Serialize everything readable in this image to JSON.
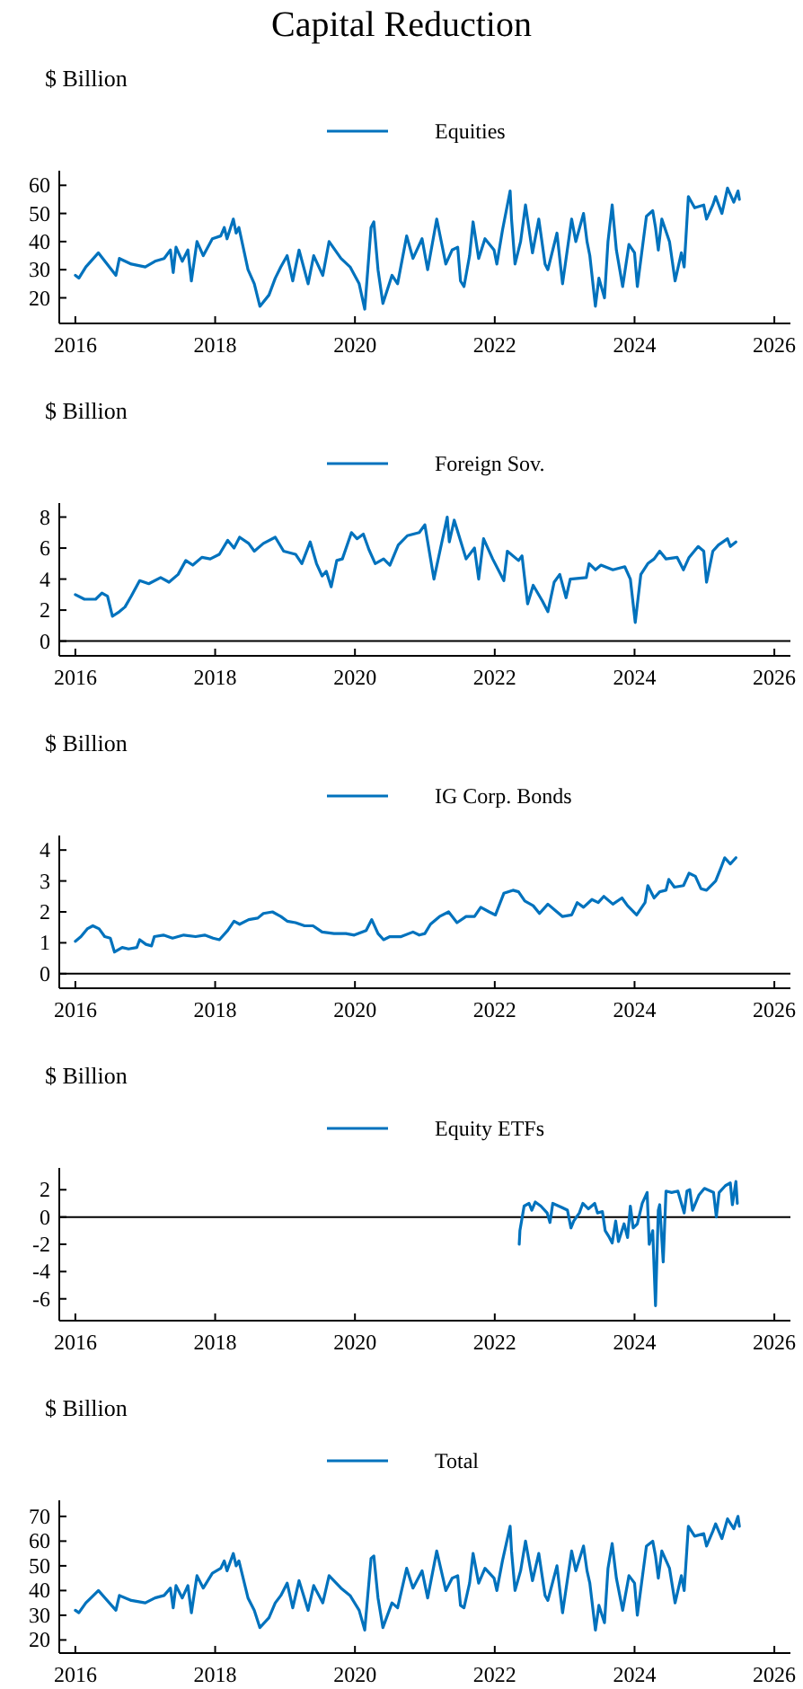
{
  "chart_data": [
    {
      "type": "line",
      "title": "Capital Reduction",
      "ylabel": "$ Billion",
      "legend": "top",
      "xlim": [
        2015.77,
        2026.23
      ],
      "xticks": [
        2016,
        2018,
        2020,
        2022,
        2024,
        2026
      ],
      "ylim": [
        10.9,
        65.2
      ],
      "yticks": [
        20,
        30,
        40,
        50,
        60
      ],
      "series": [
        {
          "name": "Equities",
          "color": "#0072bd",
          "x": [
            2016,
            2016.05,
            2016.15,
            2016.33,
            2016.58,
            2016.63,
            2016.8,
            2017,
            2017.14,
            2017.27,
            2017.36,
            2017.4,
            2017.44,
            2017.53,
            2017.61,
            2017.66,
            2017.74,
            2017.83,
            2017.96,
            2018.08,
            2018.13,
            2018.17,
            2018.26,
            2018.3,
            2018.34,
            2018.47,
            2018.56,
            2018.64,
            2018.77,
            2018.86,
            2018.94,
            2019.03,
            2019.11,
            2019.2,
            2019.33,
            2019.41,
            2019.54,
            2019.63,
            2019.8,
            2019.93,
            2020.06,
            2020.14,
            2020.23,
            2020.27,
            2020.33,
            2020.4,
            2020.53,
            2020.61,
            2020.74,
            2020.83,
            2020.96,
            2021.04,
            2021.17,
            2021.3,
            2021.39,
            2021.47,
            2021.51,
            2021.56,
            2021.64,
            2021.69,
            2021.77,
            2021.86,
            2021.99,
            2022.03,
            2022.11,
            2022.22,
            2022.24,
            2022.29,
            2022.37,
            2022.44,
            2022.54,
            2022.63,
            2022.72,
            2022.76,
            2022.89,
            2022.97,
            2023.1,
            2023.16,
            2023.27,
            2023.32,
            2023.36,
            2023.44,
            2023.49,
            2023.57,
            2023.62,
            2023.68,
            2023.74,
            2023.83,
            2023.92,
            2024,
            2024.04,
            2024.17,
            2024.26,
            2024.3,
            2024.34,
            2024.39,
            2024.5,
            2024.58,
            2024.67,
            2024.71,
            2024.77,
            2024.86,
            2024.99,
            2025.03,
            2025.12,
            2025.16,
            2025.25,
            2025.33,
            2025.42,
            2025.48,
            2025.5
          ],
          "values": [
            28,
            27,
            31,
            36,
            28,
            34,
            32,
            31,
            33,
            34,
            37,
            29,
            38,
            33,
            37,
            26,
            40,
            35,
            41,
            42,
            45,
            41,
            48,
            43,
            45,
            30,
            25,
            17,
            21,
            27,
            31,
            35,
            26,
            37,
            25,
            35,
            28,
            40,
            34,
            31,
            25,
            16,
            45,
            47,
            30,
            18,
            28,
            25,
            42,
            34,
            41,
            30,
            48,
            32,
            37,
            38,
            26,
            24,
            35,
            47,
            34,
            41,
            37,
            32,
            44,
            58,
            48,
            32,
            40,
            53,
            36,
            48,
            32,
            30,
            43,
            25,
            48,
            40,
            50,
            40,
            35,
            17,
            27,
            20,
            40,
            53,
            37,
            24,
            39,
            36,
            24,
            49,
            51,
            45,
            37,
            48,
            40,
            26,
            36,
            31,
            56,
            52,
            53,
            48,
            53,
            56,
            50,
            59,
            54,
            58,
            55
          ]
        }
      ]
    },
    {
      "type": "line",
      "ylabel": "$ Billion",
      "legend": "top",
      "xlim": [
        2015.77,
        2026.23
      ],
      "xticks": [
        2016,
        2018,
        2020,
        2022,
        2024,
        2026
      ],
      "ylim": [
        -0.95,
        8.9
      ],
      "yticks": [
        0,
        2,
        4,
        6,
        8
      ],
      "ref_lines": [
        {
          "axis": "y",
          "value": 0,
          "color": "#000000"
        }
      ],
      "series": [
        {
          "name": "Foreign Sov.",
          "color": "#0072bd",
          "x": [
            2016,
            2016.13,
            2016.29,
            2016.38,
            2016.46,
            2016.53,
            2016.63,
            2016.71,
            2016.8,
            2016.92,
            2017.05,
            2017.22,
            2017.34,
            2017.47,
            2017.58,
            2017.68,
            2017.81,
            2017.93,
            2018.06,
            2018.18,
            2018.27,
            2018.35,
            2018.48,
            2018.56,
            2018.69,
            2018.86,
            2018.98,
            2019.15,
            2019.24,
            2019.36,
            2019.45,
            2019.53,
            2019.59,
            2019.66,
            2019.74,
            2019.82,
            2019.95,
            2020.03,
            2020.12,
            2020.2,
            2020.29,
            2020.41,
            2020.5,
            2020.62,
            2020.75,
            2020.92,
            2021,
            2021.13,
            2021.32,
            2021.35,
            2021.42,
            2021.59,
            2021.71,
            2021.77,
            2021.84,
            2021.97,
            2022.13,
            2022.18,
            2022.34,
            2022.39,
            2022.47,
            2022.55,
            2022.68,
            2022.76,
            2022.85,
            2022.93,
            2023.02,
            2023.08,
            2023.31,
            2023.35,
            2023.44,
            2023.52,
            2023.69,
            2023.86,
            2023.94,
            2024.01,
            2024.09,
            2024.19,
            2024.28,
            2024.36,
            2024.45,
            2024.61,
            2024.7,
            2024.78,
            2024.91,
            2024.99,
            2025.03,
            2025.12,
            2025.2,
            2025.33,
            2025.37,
            2025.45
          ],
          "values": [
            3.0,
            2.7,
            2.7,
            3.1,
            2.9,
            1.6,
            1.9,
            2.2,
            2.9,
            3.9,
            3.7,
            4.1,
            3.8,
            4.3,
            5.2,
            4.9,
            5.4,
            5.3,
            5.6,
            6.5,
            6.0,
            6.7,
            6.3,
            5.8,
            6.3,
            6.7,
            5.8,
            5.6,
            5.0,
            6.4,
            5.0,
            4.2,
            4.5,
            3.5,
            5.2,
            5.3,
            7.0,
            6.6,
            6.9,
            5.9,
            5.0,
            5.3,
            4.9,
            6.2,
            6.8,
            7.0,
            7.5,
            4.0,
            8.0,
            6.4,
            7.8,
            5.3,
            6.0,
            4.0,
            6.6,
            5.3,
            3.9,
            5.8,
            5.2,
            5.5,
            2.4,
            3.6,
            2.6,
            1.9,
            3.8,
            4.3,
            2.8,
            4.0,
            4.1,
            5.0,
            4.6,
            4.9,
            4.6,
            4.8,
            4.0,
            1.2,
            4.3,
            5.0,
            5.3,
            5.8,
            5.3,
            5.4,
            4.6,
            5.4,
            6.1,
            5.8,
            3.8,
            5.8,
            6.2,
            6.6,
            6.1,
            6.4
          ]
        }
      ]
    },
    {
      "type": "line",
      "ylabel": "$ Billion",
      "legend": "top",
      "xlim": [
        2015.77,
        2026.23
      ],
      "xticks": [
        2016,
        2018,
        2020,
        2022,
        2024,
        2026
      ],
      "ylim": [
        -0.47,
        4.47
      ],
      "yticks": [
        0,
        1,
        2,
        3,
        4
      ],
      "ref_lines": [
        {
          "axis": "y",
          "value": 0,
          "color": "#000000"
        }
      ],
      "series": [
        {
          "name": "IG Corp. Bonds",
          "color": "#0072bd",
          "x": [
            2016,
            2016.08,
            2016.17,
            2016.25,
            2016.34,
            2016.42,
            2016.5,
            2016.56,
            2016.67,
            2016.76,
            2016.88,
            2016.92,
            2017.01,
            2017.09,
            2017.13,
            2017.26,
            2017.39,
            2017.55,
            2017.72,
            2017.85,
            2017.97,
            2018.06,
            2018.18,
            2018.27,
            2018.35,
            2018.48,
            2018.61,
            2018.69,
            2018.82,
            2018.94,
            2019.03,
            2019.15,
            2019.28,
            2019.4,
            2019.53,
            2019.7,
            2019.87,
            2019.99,
            2020.16,
            2020.24,
            2020.33,
            2020.41,
            2020.5,
            2020.66,
            2020.83,
            2020.92,
            2021,
            2021.08,
            2021.21,
            2021.34,
            2021.46,
            2021.59,
            2021.71,
            2021.8,
            2021.92,
            2022.01,
            2022.13,
            2022.26,
            2022.34,
            2022.43,
            2022.55,
            2022.64,
            2022.76,
            2022.89,
            2022.97,
            2023.1,
            2023.18,
            2023.27,
            2023.39,
            2023.48,
            2023.56,
            2023.69,
            2023.82,
            2023.9,
            2024.03,
            2024.15,
            2024.19,
            2024.28,
            2024.36,
            2024.45,
            2024.49,
            2024.57,
            2024.7,
            2024.78,
            2024.87,
            2024.95,
            2025.03,
            2025.16,
            2025.24,
            2025.29,
            2025.37,
            2025.45
          ],
          "values": [
            1.05,
            1.2,
            1.45,
            1.55,
            1.45,
            1.2,
            1.15,
            0.7,
            0.85,
            0.8,
            0.85,
            1.1,
            0.95,
            0.9,
            1.2,
            1.25,
            1.15,
            1.25,
            1.2,
            1.25,
            1.15,
            1.1,
            1.4,
            1.7,
            1.6,
            1.75,
            1.8,
            1.95,
            2.0,
            1.85,
            1.7,
            1.65,
            1.55,
            1.55,
            1.35,
            1.3,
            1.3,
            1.25,
            1.4,
            1.75,
            1.3,
            1.1,
            1.2,
            1.2,
            1.35,
            1.25,
            1.3,
            1.6,
            1.85,
            2.0,
            1.65,
            1.85,
            1.85,
            2.15,
            2.0,
            1.9,
            2.6,
            2.7,
            2.65,
            2.35,
            2.2,
            1.95,
            2.25,
            2.0,
            1.85,
            1.9,
            2.3,
            2.15,
            2.4,
            2.3,
            2.5,
            2.25,
            2.45,
            2.2,
            1.9,
            2.3,
            2.85,
            2.45,
            2.65,
            2.7,
            3.05,
            2.8,
            2.85,
            3.25,
            3.15,
            2.75,
            2.7,
            3.0,
            3.45,
            3.75,
            3.55,
            3.75
          ]
        }
      ]
    },
    {
      "type": "line",
      "ylabel": "$ Billion",
      "legend": "top",
      "xlim": [
        2015.77,
        2026.23
      ],
      "xticks": [
        2016,
        2018,
        2020,
        2022,
        2024,
        2026
      ],
      "ylim": [
        -7.6,
        3.6
      ],
      "yticks": [
        -6,
        -4,
        -2,
        0,
        2
      ],
      "ref_lines": [
        {
          "axis": "y",
          "value": 0,
          "color": "#000000"
        }
      ],
      "series": [
        {
          "name": "Equity ETFs",
          "color": "#0072bd",
          "x": [
            2022.35,
            2022.36,
            2022.42,
            2022.49,
            2022.53,
            2022.58,
            2022.66,
            2022.75,
            2022.79,
            2022.83,
            2022.96,
            2023.04,
            2023.09,
            2023.13,
            2023.21,
            2023.26,
            2023.34,
            2023.43,
            2023.47,
            2023.54,
            2023.58,
            2023.64,
            2023.68,
            2023.73,
            2023.77,
            2023.85,
            2023.9,
            2023.94,
            2023.98,
            2024.04,
            2024.11,
            2024.18,
            2024.21,
            2024.26,
            2024.3,
            2024.34,
            2024.36,
            2024.41,
            2024.45,
            2024.53,
            2024.62,
            2024.71,
            2024.75,
            2024.79,
            2024.83,
            2024.92,
            2025,
            2025.13,
            2025.17,
            2025.21,
            2025.3,
            2025.37,
            2025.4,
            2025.45,
            2025.47
          ],
          "values": [
            -2.0,
            -1.0,
            0.8,
            1.0,
            0.5,
            1.1,
            0.8,
            0.3,
            -0.4,
            1.0,
            0.7,
            0.5,
            -0.8,
            -0.3,
            0.3,
            1.0,
            0.6,
            1.0,
            0.3,
            0.4,
            -1.0,
            -1.5,
            -1.9,
            -0.3,
            -1.8,
            -0.5,
            -1.5,
            0.8,
            -0.8,
            -0.5,
            1.0,
            1.8,
            -2.0,
            -1.0,
            -6.5,
            0.5,
            0.9,
            -3.3,
            1.9,
            1.8,
            1.9,
            0.3,
            1.9,
            2.0,
            0.5,
            1.6,
            2.1,
            1.8,
            0.0,
            1.8,
            2.3,
            2.5,
            0.9,
            2.6,
            1.0
          ]
        }
      ]
    },
    {
      "type": "line",
      "ylabel": "$ Billion",
      "legend": "top",
      "xlim": [
        2015.77,
        2026.23
      ],
      "xticks": [
        2016,
        2018,
        2020,
        2022,
        2024,
        2026
      ],
      "ylim": [
        14.7,
        76.5
      ],
      "yticks": [
        20,
        30,
        40,
        50,
        60,
        70
      ],
      "series": [
        {
          "name": "Total",
          "color": "#0072bd",
          "x": [
            2016,
            2016.05,
            2016.15,
            2016.33,
            2016.58,
            2016.63,
            2016.8,
            2017,
            2017.14,
            2017.27,
            2017.36,
            2017.4,
            2017.44,
            2017.53,
            2017.61,
            2017.66,
            2017.74,
            2017.83,
            2017.96,
            2018.08,
            2018.13,
            2018.17,
            2018.26,
            2018.3,
            2018.34,
            2018.47,
            2018.56,
            2018.64,
            2018.77,
            2018.86,
            2018.94,
            2019.03,
            2019.11,
            2019.2,
            2019.33,
            2019.41,
            2019.54,
            2019.63,
            2019.8,
            2019.93,
            2020.06,
            2020.14,
            2020.23,
            2020.27,
            2020.33,
            2020.4,
            2020.53,
            2020.61,
            2020.74,
            2020.83,
            2020.96,
            2021.04,
            2021.17,
            2021.3,
            2021.39,
            2021.47,
            2021.51,
            2021.56,
            2021.64,
            2021.69,
            2021.77,
            2021.86,
            2021.99,
            2022.03,
            2022.11,
            2022.22,
            2022.24,
            2022.29,
            2022.37,
            2022.44,
            2022.54,
            2022.63,
            2022.72,
            2022.76,
            2022.89,
            2022.97,
            2023.1,
            2023.16,
            2023.27,
            2023.32,
            2023.36,
            2023.44,
            2023.49,
            2023.57,
            2023.62,
            2023.68,
            2023.74,
            2023.83,
            2023.92,
            2024,
            2024.04,
            2024.17,
            2024.26,
            2024.3,
            2024.34,
            2024.39,
            2024.5,
            2024.58,
            2024.67,
            2024.71,
            2024.77,
            2024.86,
            2024.99,
            2025.03,
            2025.12,
            2025.16,
            2025.25,
            2025.33,
            2025.42,
            2025.48,
            2025.5
          ],
          "values": [
            32,
            31,
            35,
            40,
            32,
            38,
            36,
            35,
            37,
            38,
            41,
            33,
            42,
            37,
            42,
            31,
            46,
            41,
            47,
            49,
            52,
            48,
            55,
            50,
            52,
            37,
            32,
            25,
            29,
            35,
            38,
            43,
            33,
            44,
            32,
            42,
            35,
            46,
            41,
            38,
            32,
            24,
            53,
            54,
            37,
            25,
            35,
            33,
            49,
            41,
            48,
            37,
            56,
            40,
            45,
            46,
            34,
            33,
            43,
            55,
            43,
            49,
            45,
            40,
            52,
            66,
            56,
            40,
            48,
            60,
            44,
            55,
            38,
            36,
            50,
            31,
            56,
            48,
            58,
            48,
            43,
            24,
            34,
            27,
            49,
            59,
            45,
            32,
            46,
            43,
            30,
            58,
            60,
            54,
            45,
            56,
            49,
            35,
            46,
            40,
            66,
            62,
            63,
            58,
            64,
            67,
            61,
            69,
            65,
            70,
            66
          ]
        }
      ]
    }
  ]
}
